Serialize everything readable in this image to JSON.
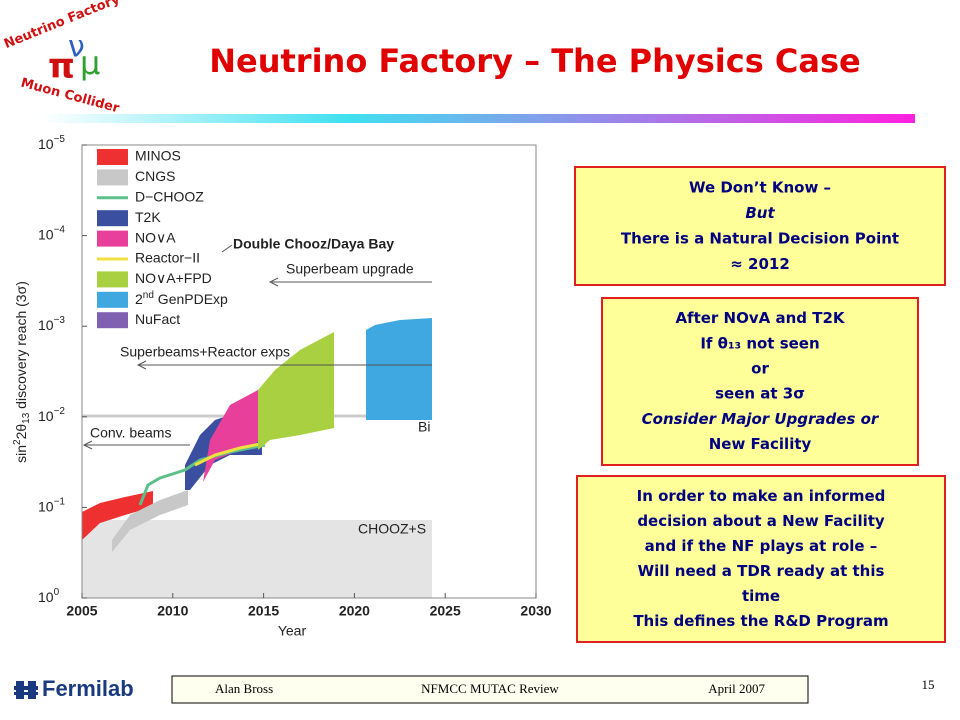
{
  "logo": {
    "top": "Neutrino Factory",
    "bottom": "Muon Collider",
    "symbols": [
      "π",
      "ν",
      "μ"
    ]
  },
  "title": "Neutrino Factory – The Physics Case",
  "figure": {
    "y_axis_label": {
      "pre": "sin",
      "sup": "2",
      "mid": "2θ",
      "sub": "13",
      "post": " discovery reach (3σ)"
    },
    "x_axis_label": "Year",
    "x_ticks": [
      "2005",
      "2010",
      "2015",
      "2020",
      "2025",
      "2030"
    ],
    "y_ticks": [
      {
        "base": "10",
        "exp": "−5"
      },
      {
        "base": "10",
        "exp": "−4"
      },
      {
        "base": "10",
        "exp": "−3"
      },
      {
        "base": "10",
        "exp": "−2"
      },
      {
        "base": "10",
        "exp": "−1"
      },
      {
        "base": "10",
        "exp": "0"
      }
    ],
    "legend": [
      {
        "label": "MINOS",
        "color": "#ee3030",
        "kind": "box"
      },
      {
        "label": "CNGS",
        "color": "#c8c8c8",
        "kind": "box"
      },
      {
        "label": "D−CHOOZ",
        "color": "#5cbf8a",
        "kind": "line"
      },
      {
        "label": "T2K",
        "color": "#3a4fa0",
        "kind": "box"
      },
      {
        "label": "NO∨A",
        "color": "#e8409a",
        "kind": "box"
      },
      {
        "label": "Reactor−II",
        "color": "#f0e040",
        "kind": "line"
      },
      {
        "label": "NO∨A+FPD",
        "color": "#a8d040",
        "kind": "box"
      },
      {
        "label": {
          "lead": "2",
          "sup": "nd",
          "rest": " GenPDExp"
        },
        "color": "#40a8e0",
        "kind": "box"
      },
      {
        "label": "NuFact",
        "color": "#8060b0",
        "kind": "box"
      }
    ],
    "annotations": {
      "double_chooz": "Double Chooz/Daya Bay",
      "superbeam_upgrade": "Superbeam upgrade",
      "superbeams_reactor": "Superbeams+Reactor exps",
      "conv_beams": "Conv. beams",
      "bi": "Bi",
      "chooz": "CHOOZ+S"
    }
  },
  "boxes": [
    {
      "lines": [
        {
          "text": "We Don’t Know –"
        },
        {
          "text": "But",
          "italic": true
        },
        {
          "text": "There is a Natural Decision Point"
        },
        {
          "text": "≈ 2012"
        }
      ]
    },
    {
      "lines": [
        {
          "text": "After NOvA and T2K"
        },
        {
          "text": "If θ₁₃ not seen"
        },
        {
          "text": "or"
        },
        {
          "text": "seen at 3σ"
        },
        {
          "text": "Consider Major Upgrades or",
          "italic": true
        },
        {
          "text": "New Facility"
        }
      ]
    },
    {
      "lines": [
        {
          "text": "In order to make an informed"
        },
        {
          "text": "decision about a New Facility"
        },
        {
          "text": "and if the NF plays at role –"
        },
        {
          "text": "Will need a TDR ready at this"
        },
        {
          "text": "time"
        },
        {
          "text": "This defines the R&D Program"
        }
      ]
    }
  ],
  "footer": {
    "lab": "Fermilab",
    "author": "Alan Bross",
    "meeting": "NFMCC MUTAC Review",
    "date": "April 2007",
    "page": "15"
  }
}
